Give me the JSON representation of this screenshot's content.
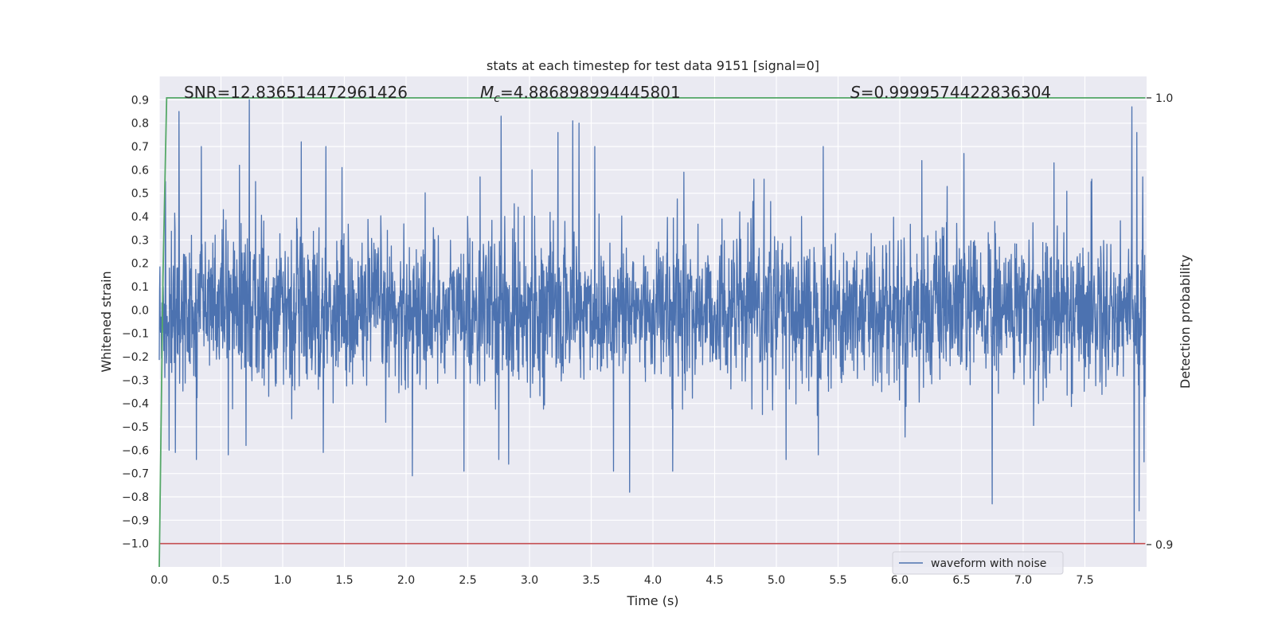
{
  "chart_data": {
    "type": "line",
    "title": "stats at each timestep for test data 9151 [signal=0]",
    "xlabel": "Time (s)",
    "ylabel": "Whitened strain",
    "y2label": "Detection probability",
    "xlim": [
      0.0,
      8.0
    ],
    "ylim": [
      -1.1,
      1.0
    ],
    "y2lim": [
      0.895,
      1.0048
    ],
    "x_ticks": [
      "0.0",
      "0.5",
      "1.0",
      "1.5",
      "2.0",
      "2.5",
      "3.0",
      "3.5",
      "4.0",
      "4.5",
      "5.0",
      "5.5",
      "6.0",
      "6.5",
      "7.0",
      "7.5"
    ],
    "y_ticks": [
      "0.9",
      "0.8",
      "0.7",
      "0.6",
      "0.5",
      "0.4",
      "0.3",
      "0.2",
      "0.1",
      "0.0",
      "−0.1",
      "−0.2",
      "−0.3",
      "−0.4",
      "−0.5",
      "−0.6",
      "−0.7",
      "−0.8",
      "−0.9",
      "−1.0"
    ],
    "y2_ticks": [
      "1.0",
      "0.9"
    ],
    "annotations": {
      "snr": "SNR=12.836514472961426",
      "mc_symbol": "M",
      "mc_sub": "c",
      "mc_value": "=4.886898994445801",
      "s_symbol": "S",
      "s_value": "=0.9999574422836304"
    },
    "legend": {
      "placement": "lower-right",
      "entries": [
        "waveform with noise"
      ]
    },
    "series": [
      {
        "name": "waveform with noise",
        "color": "#4c72b0",
        "noise_std": 0.16,
        "x_end": 7.99
      },
      {
        "name": "detection probability",
        "color": "#55a868",
        "axis": "y2",
        "points": [
          [
            0.0,
            0.895
          ],
          [
            0.03,
            0.96
          ],
          [
            0.06,
            1.0
          ],
          [
            0.1,
            1.0
          ],
          [
            7.99,
            1.0
          ]
        ]
      },
      {
        "name": "threshold",
        "color": "#c44e52",
        "y": -1.0
      }
    ],
    "spikes": [
      [
        0.05,
        0.55
      ],
      [
        0.08,
        -0.6
      ],
      [
        0.16,
        0.85
      ],
      [
        0.13,
        -0.61
      ],
      [
        0.3,
        -0.64
      ],
      [
        0.34,
        0.7
      ],
      [
        0.56,
        -0.62
      ],
      [
        0.65,
        0.62
      ],
      [
        0.73,
        0.9
      ],
      [
        0.78,
        0.55
      ],
      [
        1.15,
        0.72
      ],
      [
        1.33,
        -0.61
      ],
      [
        1.35,
        0.7
      ],
      [
        1.48,
        0.61
      ],
      [
        2.05,
        -0.71
      ],
      [
        2.47,
        -0.69
      ],
      [
        2.6,
        0.57
      ],
      [
        2.75,
        -0.64
      ],
      [
        2.77,
        0.83
      ],
      [
        2.83,
        -0.66
      ],
      [
        3.02,
        0.6
      ],
      [
        3.23,
        0.76
      ],
      [
        3.35,
        0.81
      ],
      [
        3.4,
        0.8
      ],
      [
        3.53,
        0.7
      ],
      [
        3.68,
        -0.69
      ],
      [
        3.81,
        -0.78
      ],
      [
        4.16,
        -0.69
      ],
      [
        4.25,
        0.59
      ],
      [
        4.9,
        0.56
      ],
      [
        5.08,
        -0.64
      ],
      [
        5.38,
        0.7
      ],
      [
        5.34,
        -0.62
      ],
      [
        6.18,
        0.64
      ],
      [
        6.52,
        0.67
      ],
      [
        6.75,
        -0.83
      ],
      [
        7.25,
        0.63
      ],
      [
        7.55,
        0.55
      ],
      [
        7.88,
        0.87
      ],
      [
        7.9,
        -1.0
      ],
      [
        7.94,
        -0.86
      ],
      [
        7.92,
        0.76
      ],
      [
        7.97,
        0.57
      ],
      [
        7.98,
        -0.65
      ]
    ]
  }
}
